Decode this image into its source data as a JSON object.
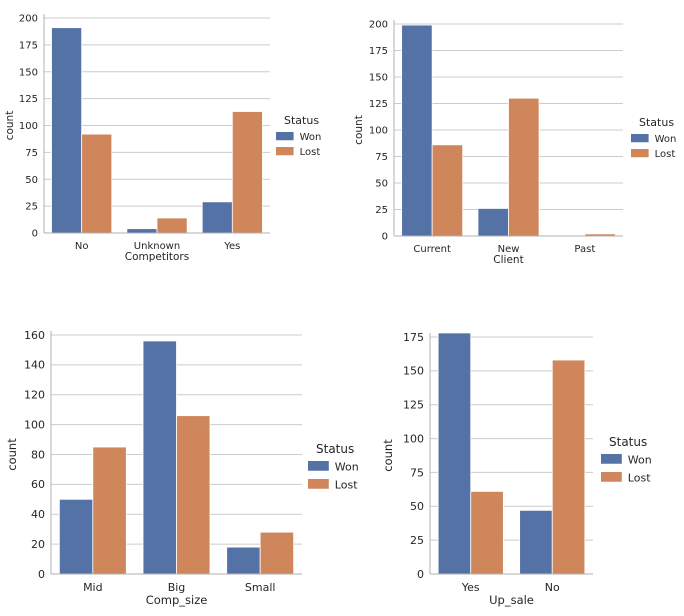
{
  "chart_data": [
    {
      "type": "bar",
      "title": "",
      "xlabel": "Competitors",
      "ylabel": "count",
      "categories": [
        "No",
        "Unknown",
        "Yes"
      ],
      "series": [
        {
          "name": "Won",
          "values": [
            191,
            4,
            29
          ]
        },
        {
          "name": "Lost",
          "values": [
            92,
            14,
            113
          ]
        }
      ],
      "ylim": [
        0,
        200
      ],
      "yticks": [
        0,
        25,
        50,
        75,
        100,
        125,
        150,
        175,
        200
      ],
      "grid": "horizontal",
      "legend": {
        "title": "Status",
        "placement": "right"
      }
    },
    {
      "type": "bar",
      "title": "",
      "xlabel": "Client",
      "ylabel": "count",
      "categories": [
        "Current",
        "New",
        "Past"
      ],
      "series": [
        {
          "name": "Won",
          "values": [
            199,
            26,
            0
          ]
        },
        {
          "name": "Lost",
          "values": [
            86,
            130,
            2
          ]
        }
      ],
      "ylim": [
        0,
        200
      ],
      "yticks": [
        0,
        25,
        50,
        75,
        100,
        125,
        150,
        175,
        200
      ],
      "grid": "horizontal",
      "legend": {
        "title": "Status",
        "placement": "right"
      }
    },
    {
      "type": "bar",
      "title": "",
      "xlabel": "Comp_size",
      "ylabel": "count",
      "categories": [
        "Mid",
        "Big",
        "Small"
      ],
      "series": [
        {
          "name": "Won",
          "values": [
            50,
            156,
            18
          ]
        },
        {
          "name": "Lost",
          "values": [
            85,
            106,
            28
          ]
        }
      ],
      "ylim": [
        0,
        160
      ],
      "yticks": [
        0,
        20,
        40,
        60,
        80,
        100,
        120,
        140,
        160
      ],
      "grid": "horizontal",
      "legend": {
        "title": "Status",
        "placement": "right"
      }
    },
    {
      "type": "bar",
      "title": "",
      "xlabel": "Up_sale",
      "ylabel": "count",
      "categories": [
        "Yes",
        "No"
      ],
      "series": [
        {
          "name": "Won",
          "values": [
            178,
            47
          ]
        },
        {
          "name": "Lost",
          "values": [
            61,
            158
          ]
        }
      ],
      "ylim": [
        0,
        175
      ],
      "yticks": [
        0,
        25,
        50,
        75,
        100,
        125,
        150,
        175
      ],
      "grid": "horizontal",
      "legend": {
        "title": "Status",
        "placement": "right"
      }
    }
  ],
  "colors": {
    "Won": "#5572a7",
    "Lost": "#d0865b",
    "grid": "#cccccc",
    "axis": "#b0b0b0"
  }
}
